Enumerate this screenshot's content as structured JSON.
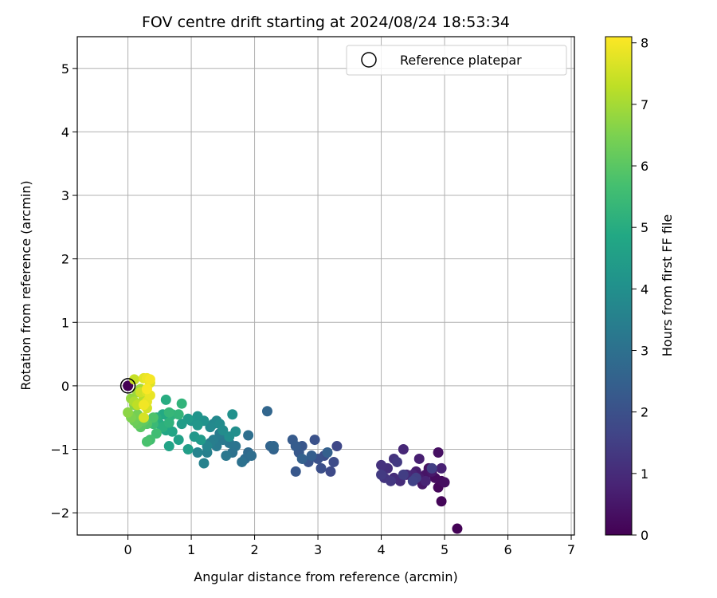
{
  "chart_data": {
    "type": "scatter",
    "title": "FOV centre drift starting at 2024/08/24 18:53:34",
    "xlabel": "Angular distance from reference (arcmin)",
    "ylabel": "Rotation from reference (arcmin)",
    "xlim": [
      -0.8,
      7.05
    ],
    "ylim": [
      -2.35,
      5.5
    ],
    "xticks": [
      "0",
      "1",
      "2",
      "3",
      "4",
      "5",
      "6",
      "7"
    ],
    "yticks": [
      "−2",
      "−1",
      "0",
      "1",
      "2",
      "3",
      "4",
      "5"
    ],
    "grid": true,
    "legend": {
      "placement": "top-right",
      "entries": [
        "Reference platepar"
      ]
    },
    "reference_point": {
      "x": 0,
      "y": 0
    },
    "colorbar": {
      "label": "Hours from first FF file",
      "range": [
        0,
        8.1
      ],
      "ticks": [
        "0",
        "1",
        "2",
        "3",
        "4",
        "5",
        "6",
        "7",
        "8"
      ],
      "colormap": [
        "#440154",
        "#482475",
        "#414487",
        "#355f8d",
        "#2a788e",
        "#21918c",
        "#22a884",
        "#44bf70",
        "#7ad151",
        "#bddf26",
        "#fde725"
      ]
    },
    "series": [
      {
        "points": [
          [
            0,
            0,
            0.0
          ],
          [
            5.2,
            -2.25,
            0.05
          ],
          [
            4.95,
            -1.82,
            0.1
          ],
          [
            4.9,
            -1.6,
            0.15
          ],
          [
            4.95,
            -1.5,
            0.2
          ],
          [
            4.85,
            -1.45,
            0.25
          ],
          [
            5.0,
            -1.52,
            0.3
          ],
          [
            4.9,
            -1.05,
            0.35
          ],
          [
            4.75,
            -1.3,
            0.4
          ],
          [
            4.7,
            -1.4,
            0.45
          ],
          [
            4.65,
            -1.55,
            0.5
          ],
          [
            4.8,
            -1.35,
            0.55
          ],
          [
            4.6,
            -1.45,
            0.6
          ],
          [
            4.55,
            -1.35,
            0.65
          ],
          [
            4.6,
            -1.15,
            0.7
          ],
          [
            4.95,
            -1.3,
            0.75
          ],
          [
            4.7,
            -1.5,
            0.8
          ],
          [
            4.5,
            -1.4,
            0.85
          ],
          [
            4.35,
            -1.0,
            0.9
          ],
          [
            4.4,
            -1.4,
            0.95
          ],
          [
            4.3,
            -1.5,
            1.0
          ],
          [
            4.2,
            -1.45,
            1.05
          ],
          [
            4.1,
            -1.3,
            1.1
          ],
          [
            4.0,
            -1.25,
            1.15
          ],
          [
            4.2,
            -1.15,
            1.2
          ],
          [
            4.05,
            -1.45,
            1.25
          ],
          [
            4.15,
            -1.5,
            1.3
          ],
          [
            4.25,
            -1.2,
            1.35
          ],
          [
            4.0,
            -1.4,
            1.4
          ],
          [
            4.35,
            -1.4,
            1.45
          ],
          [
            4.8,
            -1.3,
            1.5
          ],
          [
            4.55,
            -1.45,
            1.55
          ],
          [
            4.5,
            -1.5,
            1.6
          ],
          [
            3.3,
            -0.95,
            1.75
          ],
          [
            3.2,
            -1.35,
            1.8
          ],
          [
            3.25,
            -1.2,
            1.85
          ],
          [
            3.1,
            -1.1,
            1.9
          ],
          [
            3.05,
            -1.3,
            1.95
          ],
          [
            3.0,
            -1.15,
            2.0
          ],
          [
            2.95,
            -0.85,
            2.05
          ],
          [
            2.85,
            -1.2,
            2.1
          ],
          [
            2.75,
            -0.95,
            2.15
          ],
          [
            2.65,
            -1.35,
            2.2
          ],
          [
            2.7,
            -1.05,
            2.25
          ],
          [
            2.6,
            -0.85,
            2.3
          ],
          [
            2.65,
            -0.95,
            2.35
          ],
          [
            2.9,
            -1.1,
            2.4
          ],
          [
            3.15,
            -1.05,
            2.45
          ],
          [
            2.75,
            -1.15,
            2.5
          ],
          [
            2.3,
            -1.0,
            2.55
          ],
          [
            2.25,
            -0.95,
            2.6
          ],
          [
            2.2,
            -0.4,
            2.65
          ],
          [
            2.3,
            -0.95,
            2.7
          ],
          [
            1.9,
            -1.05,
            2.8
          ],
          [
            1.85,
            -1.15,
            2.85
          ],
          [
            1.95,
            -1.1,
            2.9
          ],
          [
            1.9,
            -0.78,
            2.95
          ],
          [
            1.8,
            -1.2,
            3.0
          ],
          [
            1.65,
            -1.05,
            3.05
          ],
          [
            1.7,
            -0.95,
            3.1
          ],
          [
            1.6,
            -0.9,
            3.15
          ],
          [
            1.55,
            -1.1,
            3.2
          ],
          [
            1.5,
            -0.85,
            3.25
          ],
          [
            1.4,
            -0.95,
            3.3
          ],
          [
            1.45,
            -0.75,
            3.35
          ],
          [
            1.35,
            -0.85,
            3.4
          ],
          [
            1.3,
            -0.9,
            3.45
          ],
          [
            1.25,
            -1.05,
            3.5
          ],
          [
            1.2,
            -1.22,
            3.55
          ],
          [
            1.1,
            -1.05,
            3.6
          ],
          [
            1.25,
            -0.95,
            3.65
          ],
          [
            1.35,
            -0.6,
            3.7
          ],
          [
            1.4,
            -0.55,
            3.75
          ],
          [
            1.3,
            -0.65,
            3.8
          ],
          [
            1.45,
            -0.6,
            3.85
          ],
          [
            1.5,
            -0.7,
            3.9
          ],
          [
            1.6,
            -0.8,
            3.95
          ],
          [
            1.7,
            -0.72,
            4.0
          ],
          [
            1.65,
            -0.45,
            4.05
          ],
          [
            1.2,
            -0.55,
            4.1
          ],
          [
            1.1,
            -0.48,
            4.15
          ],
          [
            1.0,
            -0.55,
            4.2
          ],
          [
            1.1,
            -0.62,
            4.25
          ],
          [
            1.05,
            -0.8,
            4.3
          ],
          [
            1.15,
            -0.85,
            4.35
          ],
          [
            0.95,
            -0.52,
            4.4
          ],
          [
            0.85,
            -0.6,
            4.45
          ],
          [
            0.95,
            -1.0,
            4.5
          ],
          [
            0.8,
            -0.85,
            4.6
          ],
          [
            0.65,
            -0.95,
            4.7
          ],
          [
            0.7,
            -0.72,
            4.75
          ],
          [
            0.6,
            -0.7,
            4.8
          ],
          [
            0.65,
            -0.5,
            4.85
          ],
          [
            0.55,
            -0.45,
            4.9
          ],
          [
            0.5,
            -0.6,
            4.95
          ],
          [
            0.6,
            -0.22,
            5.0
          ],
          [
            0.45,
            -0.5,
            5.05
          ],
          [
            0.55,
            -0.65,
            5.1
          ],
          [
            0.7,
            -0.45,
            5.15
          ],
          [
            0.65,
            -0.58,
            5.2
          ],
          [
            0.85,
            -0.28,
            5.25
          ],
          [
            0.8,
            -0.45,
            5.3
          ],
          [
            0.65,
            -0.42,
            5.35
          ],
          [
            0.4,
            -0.6,
            5.45
          ],
          [
            0.45,
            -0.75,
            5.55
          ],
          [
            0.35,
            -0.85,
            5.65
          ],
          [
            0.3,
            -0.88,
            5.75
          ],
          [
            0.4,
            -0.5,
            5.8
          ],
          [
            0.3,
            -0.6,
            5.9
          ],
          [
            0.2,
            -0.65,
            6.0
          ],
          [
            0.25,
            -0.55,
            6.1
          ],
          [
            0.15,
            -0.6,
            6.2
          ],
          [
            0.1,
            -0.55,
            6.3
          ],
          [
            0.15,
            -0.45,
            6.4
          ],
          [
            0.05,
            -0.5,
            6.5
          ],
          [
            0.1,
            -0.3,
            6.6
          ],
          [
            0.0,
            -0.42,
            6.7
          ],
          [
            0.05,
            -0.2,
            6.8
          ],
          [
            0.15,
            -0.1,
            6.9
          ],
          [
            0.2,
            -0.05,
            7.0
          ],
          [
            0.1,
            -0.25,
            7.1
          ],
          [
            0.25,
            -0.2,
            7.2
          ],
          [
            0.15,
            -0.3,
            7.3
          ],
          [
            0.1,
            0.1,
            7.4
          ],
          [
            0.2,
            -0.1,
            7.5
          ],
          [
            0.3,
            -0.35,
            7.55
          ],
          [
            0.25,
            -0.5,
            7.6
          ],
          [
            0.3,
            -0.1,
            7.65
          ],
          [
            0.35,
            0.05,
            7.7
          ],
          [
            0.25,
            0.12,
            7.75
          ],
          [
            0.3,
            -0.25,
            7.8
          ],
          [
            0.35,
            -0.15,
            7.85
          ],
          [
            0.3,
            0.12,
            7.9
          ],
          [
            0.25,
            -0.3,
            7.95
          ],
          [
            0.35,
            0.1,
            8.0
          ],
          [
            0.3,
            -0.05,
            8.05
          ]
        ]
      }
    ]
  }
}
